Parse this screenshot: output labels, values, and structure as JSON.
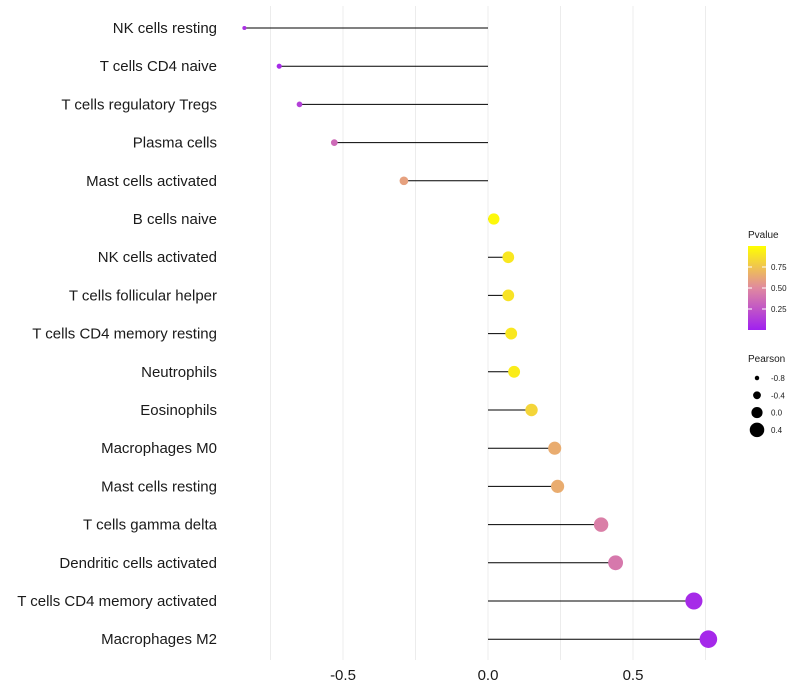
{
  "chart_data": {
    "type": "lollipop",
    "title": "",
    "xlabel": "",
    "ylabel": "",
    "xlim": [
      -0.95,
      0.85
    ],
    "xticks": [
      -0.5,
      0.0,
      0.5
    ],
    "xtick_labels": [
      "-0.5",
      "0.0",
      "0.5"
    ],
    "grid": true,
    "categories": [
      "NK cells resting",
      "T cells CD4 naive",
      "T cells regulatory  Tregs ",
      "Plasma cells",
      "Mast cells activated",
      "B cells naive",
      "NK cells activated",
      "T cells follicular helper",
      "T cells CD4 memory resting",
      "Neutrophils",
      "Eosinophils",
      "Macrophages M0",
      "Mast cells resting",
      "T cells gamma delta",
      "Dendritic cells activated",
      "T cells CD4 memory activated",
      "Macrophages M2"
    ],
    "pearson": [
      -0.84,
      -0.72,
      -0.65,
      -0.53,
      -0.29,
      0.02,
      0.07,
      0.07,
      0.08,
      0.09,
      0.15,
      0.23,
      0.24,
      0.39,
      0.44,
      0.71,
      0.76
    ],
    "pvalue": [
      0.08,
      0.05,
      0.15,
      0.35,
      0.6,
      0.97,
      0.9,
      0.88,
      0.9,
      0.92,
      0.82,
      0.65,
      0.65,
      0.45,
      0.42,
      0.05,
      0.04
    ],
    "legend_pvalue": {
      "title": "Pvalue",
      "ticks": [
        0.25,
        0.5,
        0.75
      ],
      "tick_labels": [
        "0.25",
        "0.50",
        "0.75"
      ],
      "range": [
        0.0,
        1.0
      ],
      "color_low": "#a020f0",
      "color_mid": "#e0899f",
      "color_high": "#ffff00"
    },
    "legend_pearson": {
      "title": "Pearson",
      "values": [
        -0.8,
        -0.4,
        0.0,
        0.4
      ],
      "labels": [
        "-0.8",
        "-0.4",
        "0.0",
        "0.4"
      ]
    },
    "legend_placement": "right"
  }
}
